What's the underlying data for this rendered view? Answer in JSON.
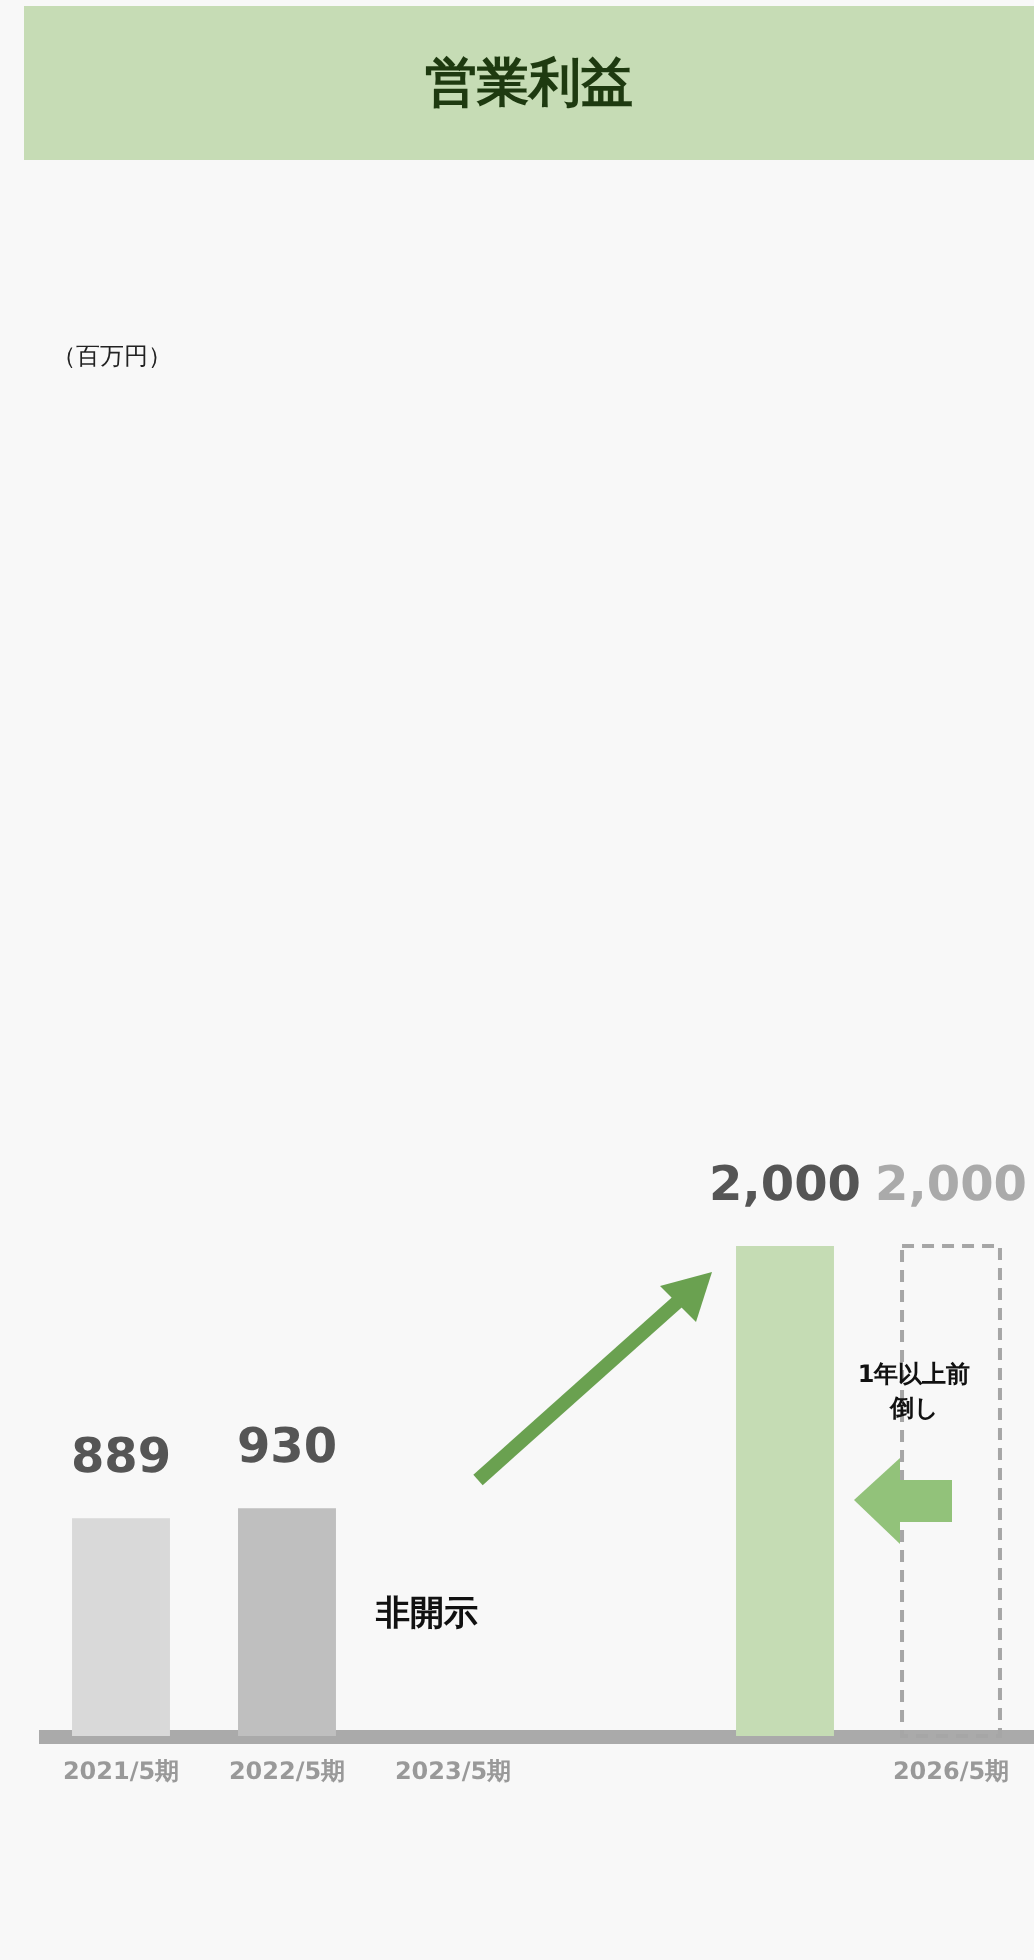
{
  "chart_data": {
    "type": "bar",
    "title": "営業利益",
    "categories": [
      "2021/5期",
      "2022/5期",
      "2023/5期",
      null,
      null,
      "2026/5期"
    ],
    "series": [
      {
        "values": [
          889,
          930,
          null,
          null,
          2000,
          null
        ],
        "value_labels": [
          "889",
          "930",
          null,
          null,
          "2,000",
          null
        ],
        "colors": [
          "#d9d9d9",
          "#bfbfbf",
          null,
          null,
          "#c5dcb4",
          null
        ]
      },
      {
        "values": [
          null,
          null,
          null,
          null,
          null,
          2000
        ],
        "value_labels": [
          null,
          null,
          null,
          null,
          null,
          "2,000"
        ],
        "color": "#a6a6a6",
        "line_style": "dashed"
      }
    ],
    "grid": false,
    "annotations": [
      "（百万円）",
      "非開示",
      "1年以上前倒し"
    ]
  }
}
